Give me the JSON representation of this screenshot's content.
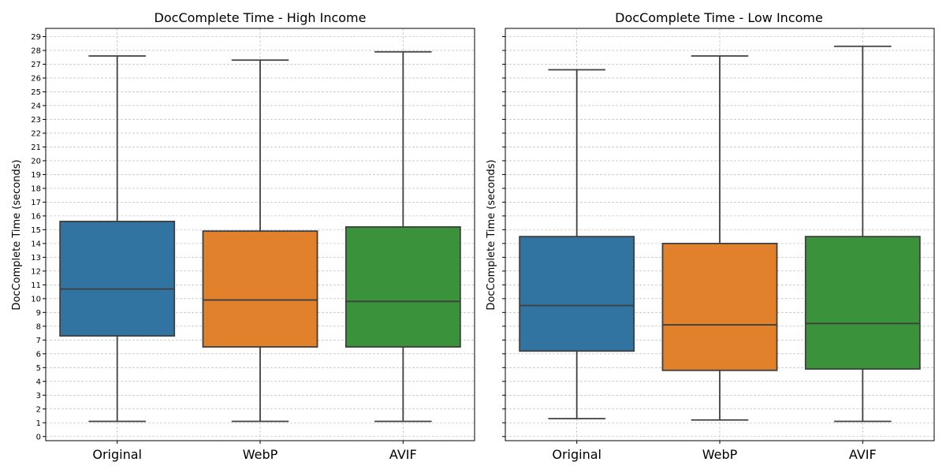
{
  "chart_data": [
    {
      "type": "box",
      "title": "DocComplete Time - High Income",
      "ylabel": "DocComplete Time (seconds)",
      "xlabel": "",
      "ylim": [
        -0.3,
        29.6
      ],
      "yticks": [
        0,
        1,
        2,
        3,
        4,
        5,
        6,
        7,
        8,
        9,
        10,
        11,
        12,
        13,
        14,
        15,
        16,
        17,
        18,
        19,
        20,
        21,
        22,
        23,
        24,
        25,
        26,
        27,
        28,
        29
      ],
      "show_ytick_labels": true,
      "grid": true,
      "categories": [
        "Original",
        "WebP",
        "AVIF"
      ],
      "colors": [
        "#3274a1",
        "#e1812c",
        "#3a923a"
      ],
      "boxes": [
        {
          "whisker_low": 1.1,
          "q1": 7.3,
          "median": 10.7,
          "q3": 15.6,
          "whisker_high": 27.6
        },
        {
          "whisker_low": 1.1,
          "q1": 6.5,
          "median": 9.9,
          "q3": 14.9,
          "whisker_high": 27.3
        },
        {
          "whisker_low": 1.1,
          "q1": 6.5,
          "median": 9.8,
          "q3": 15.2,
          "whisker_high": 27.9
        }
      ]
    },
    {
      "type": "box",
      "title": "DocComplete Time - Low Income",
      "ylabel": "DocComplete Time (seconds)",
      "xlabel": "",
      "ylim": [
        -0.3,
        29.6
      ],
      "yticks": [
        0,
        1,
        2,
        3,
        4,
        5,
        6,
        7,
        8,
        9,
        10,
        11,
        12,
        13,
        14,
        15,
        16,
        17,
        18,
        19,
        20,
        21,
        22,
        23,
        24,
        25,
        26,
        27,
        28,
        29
      ],
      "show_ytick_labels": false,
      "grid": true,
      "categories": [
        "Original",
        "WebP",
        "AVIF"
      ],
      "colors": [
        "#3274a1",
        "#e1812c",
        "#3a923a"
      ],
      "boxes": [
        {
          "whisker_low": 1.3,
          "q1": 6.2,
          "median": 9.5,
          "q3": 14.5,
          "whisker_high": 26.6
        },
        {
          "whisker_low": 1.2,
          "q1": 4.8,
          "median": 8.1,
          "q3": 14.0,
          "whisker_high": 27.6
        },
        {
          "whisker_low": 1.1,
          "q1": 4.9,
          "median": 8.2,
          "q3": 14.5,
          "whisker_high": 28.3
        }
      ]
    }
  ]
}
